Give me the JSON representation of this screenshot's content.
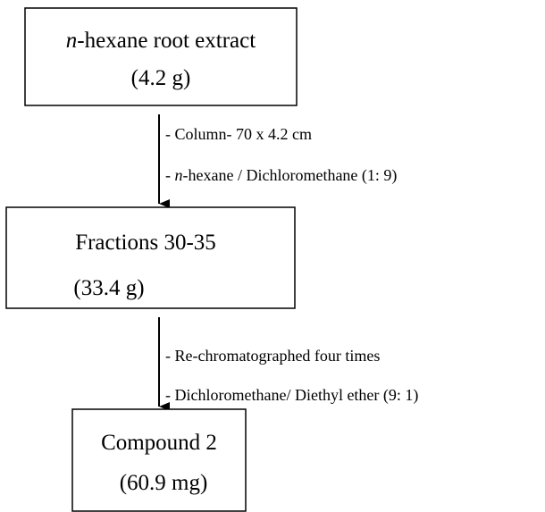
{
  "nodes": [
    {
      "label": {
        "italic": "n",
        "rest": "-hexane root extract"
      },
      "amount": "(4.2 g)"
    },
    {
      "label": "Fractions 30-35",
      "amount": "(33.4 g)"
    },
    {
      "label": "Compound 2",
      "amount": "(60.9 mg)"
    }
  ],
  "edges": [
    {
      "notes": [
        {
          "text": "- Column- 70 x 4.2 cm"
        },
        {
          "prefix": "- ",
          "italic": "n",
          "rest": "-hexane / Dichloromethane (1: 9)"
        }
      ]
    },
    {
      "notes": [
        {
          "text": "- Re-chromatographed four times"
        },
        {
          "text": "- Dichloromethane/ Diethyl ether (9: 1)"
        }
      ]
    }
  ]
}
